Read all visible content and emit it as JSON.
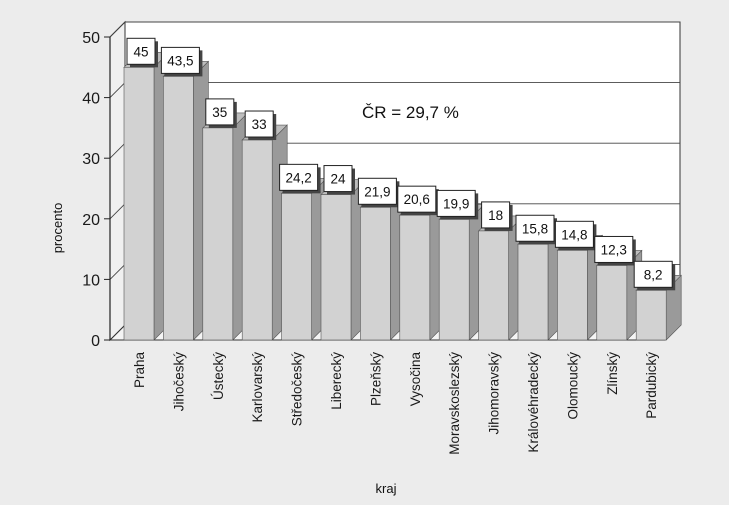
{
  "chart_data": {
    "type": "bar",
    "title": "",
    "xlabel": "kraj",
    "ylabel": "procento",
    "ylim": [
      0,
      50
    ],
    "yticks": [
      0,
      10,
      20,
      30,
      40,
      50
    ],
    "grid": true,
    "categories": [
      "Praha",
      "Jihočeský",
      "Ústecký",
      "Karlovarský",
      "Středočeský",
      "Liberecký",
      "Plzeňský",
      "Vysočina",
      "Moravskoslezský",
      "Jihomoravský",
      "Královéhradecký",
      "Olomoucký",
      "Zlínský",
      "Pardubický"
    ],
    "values": [
      45,
      43.5,
      35,
      33,
      24.2,
      24,
      21.9,
      20.6,
      19.9,
      18,
      15.8,
      14.8,
      12.3,
      8.2
    ],
    "data_labels": [
      "45",
      "43,5",
      "35",
      "33",
      "24,2",
      "24",
      "21,9",
      "20,6",
      "19,9",
      "18",
      "15,8",
      "14,8",
      "12,3",
      "8,2"
    ],
    "annotation": "ČR = 29,7 %",
    "colors": {
      "bar_front": "#d2d2d2",
      "bar_side": "#9a9a9a",
      "bar_top": "#bdbdbd",
      "wall": "#ffffff",
      "grid": "#444444"
    }
  }
}
